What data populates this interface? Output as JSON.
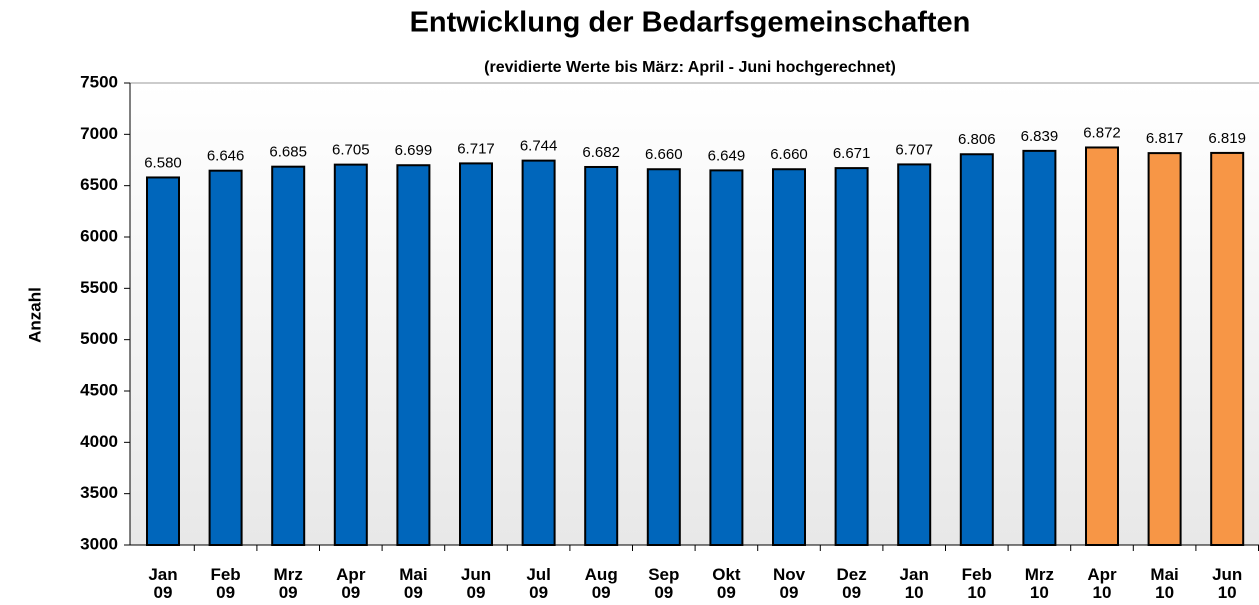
{
  "chart_data": {
    "type": "bar",
    "title": "Entwicklung der Bedarfsgemeinschaften",
    "subtitle": "(revidierte Werte bis März: April - Juni hochgerechnet)",
    "y_label": "Anzahl",
    "categories": [
      "Jan 09",
      "Feb 09",
      "Mrz 09",
      "Apr 09",
      "Mai 09",
      "Jun 09",
      "Jul 09",
      "Aug 09",
      "Sep 09",
      "Okt 09",
      "Nov 09",
      "Dez 09",
      "Jan 10",
      "Feb 10",
      "Mrz 10",
      "Apr 10",
      "Mai 10",
      "Jun 10"
    ],
    "values": [
      6580,
      6646,
      6685,
      6705,
      6699,
      6717,
      6744,
      6682,
      6660,
      6649,
      6660,
      6671,
      6707,
      6806,
      6839,
      6872,
      6817,
      6819
    ],
    "value_labels": [
      "6.580",
      "6.646",
      "6.685",
      "6.705",
      "6.699",
      "6.717",
      "6.744",
      "6.682",
      "6.660",
      "6.649",
      "6.660",
      "6.671",
      "6.707",
      "6.806",
      "6.839",
      "6.872",
      "6.817",
      "6.819"
    ],
    "colors": [
      "#0066bb",
      "#0066bb",
      "#0066bb",
      "#0066bb",
      "#0066bb",
      "#0066bb",
      "#0066bb",
      "#0066bb",
      "#0066bb",
      "#0066bb",
      "#0066bb",
      "#0066bb",
      "#0066bb",
      "#0066bb",
      "#0066bb",
      "#f79646",
      "#f79646",
      "#f79646"
    ],
    "ylim": [
      3000,
      7500
    ],
    "yticks": [
      3000,
      3500,
      4000,
      4500,
      5000,
      5500,
      6000,
      6500,
      7000,
      7500
    ],
    "grid": false
  }
}
